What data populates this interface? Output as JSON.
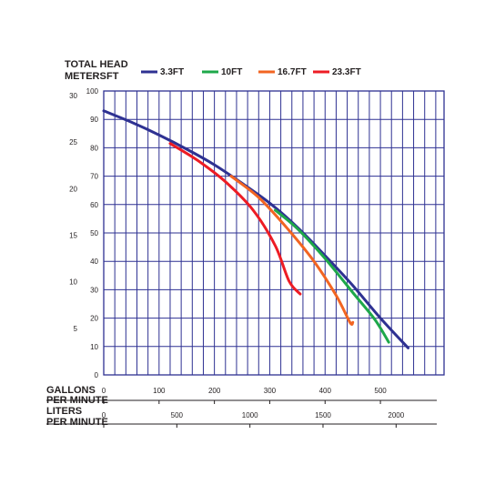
{
  "chart_data": {
    "type": "line",
    "title": "",
    "y_title_line1": "TOTAL HEAD",
    "y_title_meters": "METERS",
    "y_title_ft": "FT",
    "x_label_gpm_line1": "GALLONS",
    "x_label_gpm_line2": "PER MINUTE",
    "x_label_lpm_line1": "LITERS",
    "x_label_lpm_line2": "PER MINUTE",
    "ft_ticks": [
      "0",
      "10",
      "20",
      "30",
      "40",
      "50",
      "60",
      "70",
      "80",
      "90",
      "100"
    ],
    "meter_ticks": [
      "5",
      "10",
      "15",
      "20",
      "25",
      "30"
    ],
    "gpm_ticks": [
      "0",
      "100",
      "200",
      "300",
      "400",
      "500"
    ],
    "lpm_ticks": [
      "0",
      "500",
      "1000",
      "1500",
      "2000"
    ],
    "xlim_gpm": [
      0,
      615
    ],
    "ylim_ft": [
      0,
      100
    ],
    "grid": true,
    "legend_position": "top",
    "series": [
      {
        "name": "3.3FT",
        "color": "#2e3192",
        "x": [
          0,
          50,
          100,
          150,
          200,
          250,
          300,
          350,
          400,
          450,
          500,
          550
        ],
        "y": [
          93,
          89,
          84.5,
          79.5,
          74,
          67.5,
          60.5,
          52,
          42,
          31.5,
          20,
          9.5
        ]
      },
      {
        "name": "10FT",
        "color": "#1ea84a",
        "x": [
          310,
          350,
          400,
          450,
          490,
          515
        ],
        "y": [
          58,
          51.5,
          41,
          29,
          19.5,
          11.5
        ]
      },
      {
        "name": "16.7FT",
        "color": "#f26522",
        "x": [
          230,
          280,
          330,
          380,
          420,
          445,
          450
        ],
        "y": [
          70,
          62.5,
          52,
          40,
          28,
          18.5,
          18.5
        ]
      },
      {
        "name": "23.3FT",
        "color": "#ed1c24",
        "x": [
          120,
          170,
          220,
          270,
          310,
          335,
          355
        ],
        "y": [
          81.5,
          75.5,
          68,
          58,
          45.5,
          33,
          28.5
        ]
      }
    ]
  }
}
